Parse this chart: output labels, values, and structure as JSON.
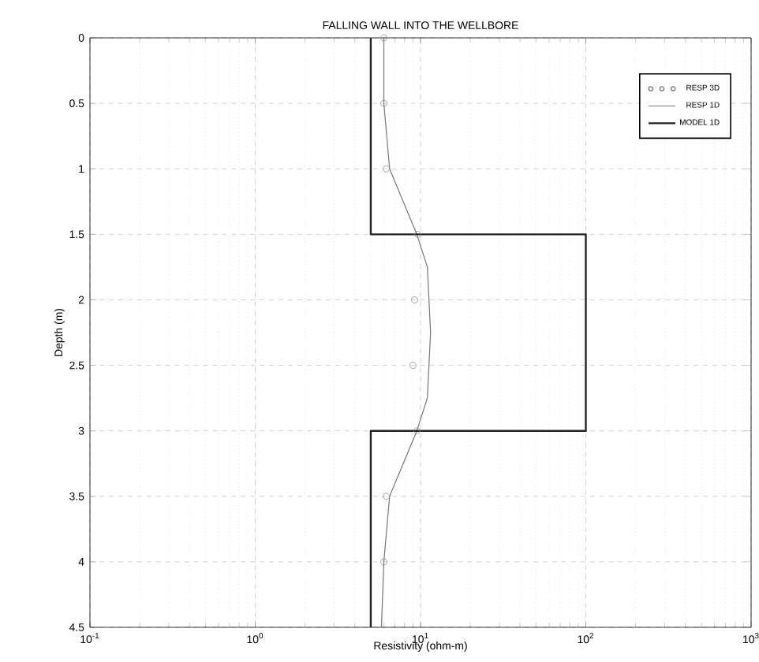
{
  "chart_data": {
    "type": "line",
    "title": "FALLING WALL INTO THE WELLBORE",
    "xlabel": "Resistivity (ohm-m)",
    "ylabel": "Depth (m)",
    "log": "x",
    "grid": true,
    "legend": "top right",
    "xlim": [
      0.1,
      1000
    ],
    "ylim": [
      4.5,
      0
    ],
    "xticks": [
      {
        "value": 0.1,
        "label": "10$^{-1}$"
      },
      {
        "value": 1,
        "label": "10$^{0}$"
      },
      {
        "value": 10,
        "label": "10$^{1}$"
      },
      {
        "value": 100,
        "label": "10$^{2}$"
      },
      {
        "value": 1000,
        "label": "10$^{3}$"
      }
    ],
    "yticks": [
      0,
      0.5,
      1,
      1.5,
      2,
      2.5,
      3,
      3.5,
      4,
      4.5
    ],
    "series": [
      {
        "name": "RESP  3D",
        "type": "scatter",
        "marker": "circle",
        "color": "#8c8c8c",
        "x": [
          6.0,
          6.0,
          6.2,
          9.6,
          9.2,
          9.0,
          9.5,
          6.2,
          6.0
        ],
        "values": [
          0,
          0.5,
          1,
          1.5,
          2,
          2.5,
          3,
          3.5,
          4
        ]
      },
      {
        "name": "RESP  1D",
        "color": "#777777",
        "x": [
          6.0,
          6.0,
          6.5,
          9.5,
          11,
          11.5,
          11,
          9.5,
          6.5,
          6.0,
          5.8
        ],
        "values": [
          0,
          0.5,
          1,
          1.5,
          1.75,
          2.25,
          2.75,
          3,
          3.5,
          4,
          4.5
        ]
      },
      {
        "name": "MODEL  1D",
        "color": "#222222",
        "x": [
          5,
          5,
          100,
          100,
          5,
          5
        ],
        "values": [
          0,
          1.5,
          1.5,
          3,
          3,
          4.5
        ]
      }
    ]
  }
}
